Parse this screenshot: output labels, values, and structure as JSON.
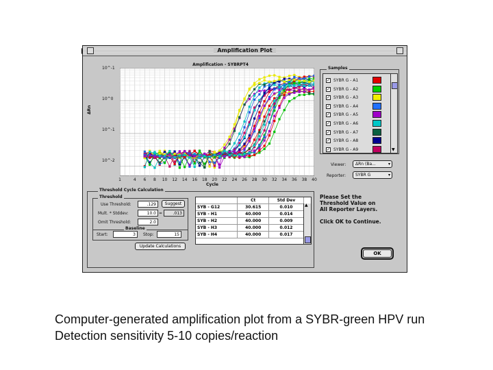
{
  "window": {
    "title": "Amplification Plot"
  },
  "plot": {
    "title": "Amplification - SYBRPT4",
    "ylabel": "ΔRn",
    "xlabel": "Cycle",
    "yticks": [
      "10^-1",
      "10^0",
      "10^-1",
      "10^-2"
    ],
    "xticks": [
      "1",
      "4",
      "6",
      "8",
      "10",
      "12",
      "14",
      "16",
      "18",
      "20",
      "22",
      "24",
      "26",
      "28",
      "30",
      "32",
      "34",
      "36",
      "38",
      "40"
    ]
  },
  "chart_data": {
    "type": "scatter",
    "title": "Amplification - SYBRPT4",
    "xlabel": "Cycle",
    "ylabel": "ΔRn",
    "xlim": [
      1,
      40
    ],
    "ylim": [
      -2.3,
      1
    ],
    "yscale": "log",
    "grid": true,
    "series_colors": [
      "#e00000",
      "#00c000",
      "#e8e800",
      "#2060e0",
      "#a000c0",
      "#00c0c0",
      "#106040",
      "#000090",
      "#c00060"
    ]
  },
  "samples": {
    "label": "Samples",
    "items": [
      {
        "label": "SYBR G - A1",
        "color": "#e00000"
      },
      {
        "label": "SYBR G - A2",
        "color": "#00d000"
      },
      {
        "label": "SYBR G - A3",
        "color": "#f0f000"
      },
      {
        "label": "SYBR G - A4",
        "color": "#2070ff"
      },
      {
        "label": "SYBR G - A5",
        "color": "#a000c8"
      },
      {
        "label": "SYBR G - A6",
        "color": "#00c8c8"
      },
      {
        "label": "SYBR G - A7",
        "color": "#0a6040"
      },
      {
        "label": "SYBR G - A8",
        "color": "#000090"
      },
      {
        "label": "SYBR G - A9",
        "color": "#c00060"
      }
    ],
    "check_mark": "✓"
  },
  "viewer": {
    "label": "Viewer:",
    "value": "ΔRn (Ba..."
  },
  "reporter": {
    "label": "Reporter:",
    "value": "SYBR G"
  },
  "threshold_calc": {
    "group_label": "Threshold Cycle Calculation",
    "threshold_label": "Threshold",
    "use_threshold_label": "Use Threshold:",
    "use_threshold_value": ".129",
    "suggest_label": "Suggest",
    "mult_label": "Mult. * Stddev:",
    "mult_value": "10.0",
    "equals_sign": "=",
    "mult_result": ".013",
    "omit_label": "Omit Threshold:",
    "omit_value": "2.0",
    "baseline_label": "Baseline",
    "start_label": "Start:",
    "start_value": "3",
    "stop_label": "Stop:",
    "stop_value": "15",
    "update_label": "Update Calculations"
  },
  "ct_table": {
    "headers": [
      "",
      "Ct",
      "Std Dev"
    ],
    "rows": [
      [
        "SYB - G12",
        "30.615",
        "0.010"
      ],
      [
        "SYB - H1",
        "40.000",
        "0.014"
      ],
      [
        "SYB - H2",
        "40.000",
        "0.009"
      ],
      [
        "SYB - H3",
        "40.000",
        "0.012"
      ],
      [
        "SYB - H4",
        "40.000",
        "0.017"
      ]
    ]
  },
  "message": {
    "line1": "Please Set the",
    "line2": "Threshold Value on",
    "line3": "All Reporter Layers.",
    "line4": "Click OK to Continue."
  },
  "ok_label": "OK",
  "caption": {
    "line1": "Computer-generated amplification plot from a SYBR-green HPV run",
    "line2": "Detection sensitivity 5-10 copies/reaction"
  }
}
